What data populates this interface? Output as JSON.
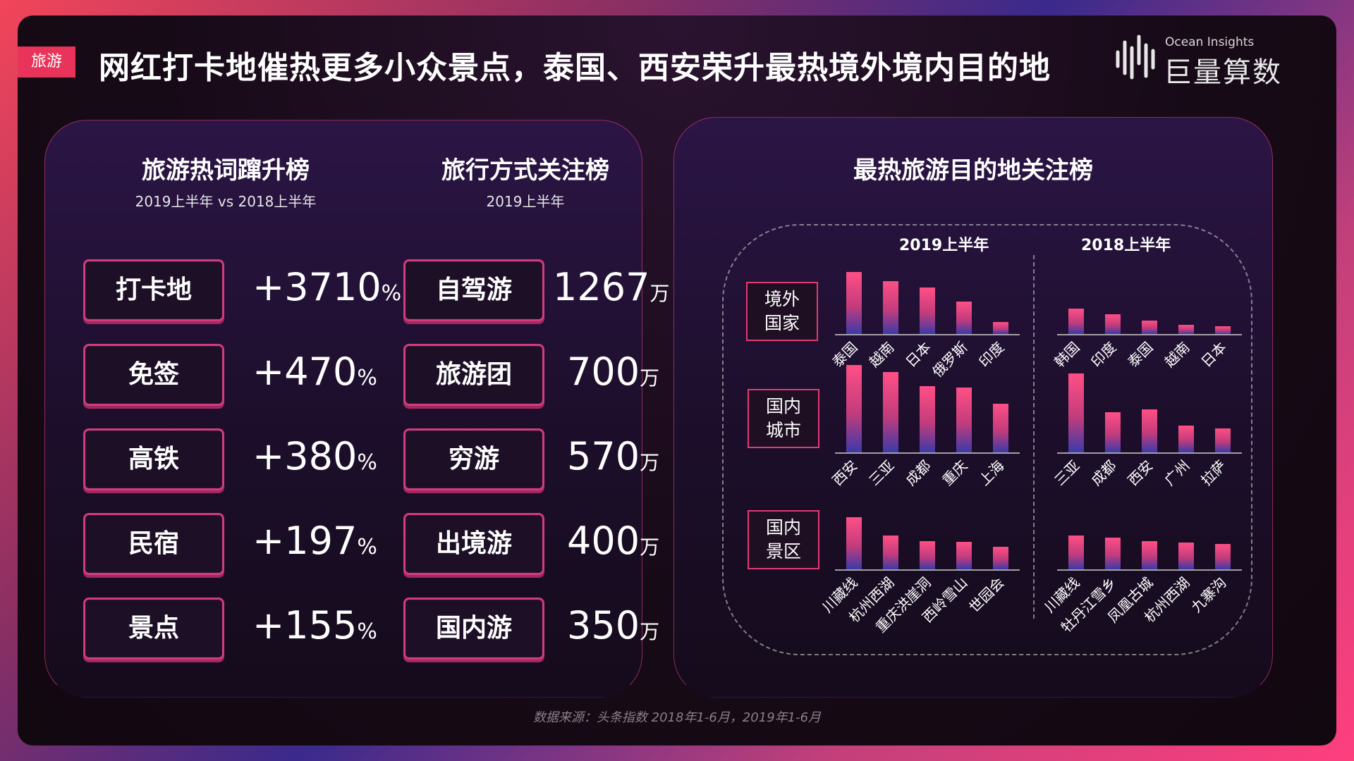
{
  "header": {
    "tag": "旅游",
    "title": "网红打卡地催热更多小众景点，泰国、西安荣升最热境外境内目的地",
    "logo_sub": "Ocean Insights",
    "logo_main": "巨量算数"
  },
  "left_panel": {
    "hot_words": {
      "title": "旅游热词蹿升榜",
      "subtitle": "2019上半年 vs 2018上半年",
      "items": [
        {
          "word": "打卡地",
          "growth": "+3710",
          "unit": "%"
        },
        {
          "word": "免签",
          "growth": "+470",
          "unit": "%"
        },
        {
          "word": "高铁",
          "growth": "+380",
          "unit": "%"
        },
        {
          "word": "民宿",
          "growth": "+197",
          "unit": "%"
        },
        {
          "word": "景点",
          "growth": "+155",
          "unit": "%"
        }
      ]
    },
    "travel_modes": {
      "title": "旅行方式关注榜",
      "subtitle": "2019上半年",
      "items": [
        {
          "mode": "自驾游",
          "value": "1267",
          "unit": "万"
        },
        {
          "mode": "旅游团",
          "value": "700",
          "unit": "万"
        },
        {
          "mode": "穷游",
          "value": "570",
          "unit": "万"
        },
        {
          "mode": "出境游",
          "value": "400",
          "unit": "万"
        },
        {
          "mode": "国内游",
          "value": "350",
          "unit": "万"
        }
      ]
    }
  },
  "right_panel": {
    "title": "最热旅游目的地关注榜",
    "period_2019": "2019上半年",
    "period_2018": "2018上半年",
    "row_labels": [
      [
        "境外",
        "国家"
      ],
      [
        "国内",
        "城市"
      ],
      [
        "国内",
        "景区"
      ]
    ]
  },
  "chart_data": [
    {
      "type": "bar",
      "group": "境外国家",
      "period": "2019上半年",
      "categories": [
        "泰国",
        "越南",
        "日本",
        "俄罗斯",
        "印度"
      ],
      "values": [
        88,
        75,
        66,
        46,
        17
      ]
    },
    {
      "type": "bar",
      "group": "境外国家",
      "period": "2018上半年",
      "categories": [
        "韩国",
        "印度",
        "泰国",
        "越南",
        "日本"
      ],
      "values": [
        36,
        28,
        19,
        13,
        11
      ]
    },
    {
      "type": "bar",
      "group": "国内城市",
      "period": "2019上半年",
      "categories": [
        "西安",
        "三亚",
        "成都",
        "重庆",
        "上海"
      ],
      "values": [
        124,
        114,
        94,
        92,
        69
      ]
    },
    {
      "type": "bar",
      "group": "国内城市",
      "period": "2018上半年",
      "categories": [
        "三亚",
        "成都",
        "西安",
        "广州",
        "拉萨"
      ],
      "values": [
        112,
        57,
        61,
        38,
        34
      ]
    },
    {
      "type": "bar",
      "group": "国内景区",
      "period": "2019上半年",
      "categories": [
        "川藏线",
        "杭州西湖",
        "重庆洪崖洞",
        "西岭雪山",
        "世园会"
      ],
      "values": [
        74,
        48,
        40,
        39,
        32
      ]
    },
    {
      "type": "bar",
      "group": "国内景区",
      "period": "2018上半年",
      "categories": [
        "川藏线",
        "牡丹江雪乡",
        "凤凰古城",
        "杭州西湖",
        "九寨沟"
      ],
      "values": [
        48,
        45,
        40,
        38,
        36
      ]
    }
  ],
  "footer": {
    "source": "数据来源：头条指数  2018年1-6月，2019年1-6月"
  }
}
